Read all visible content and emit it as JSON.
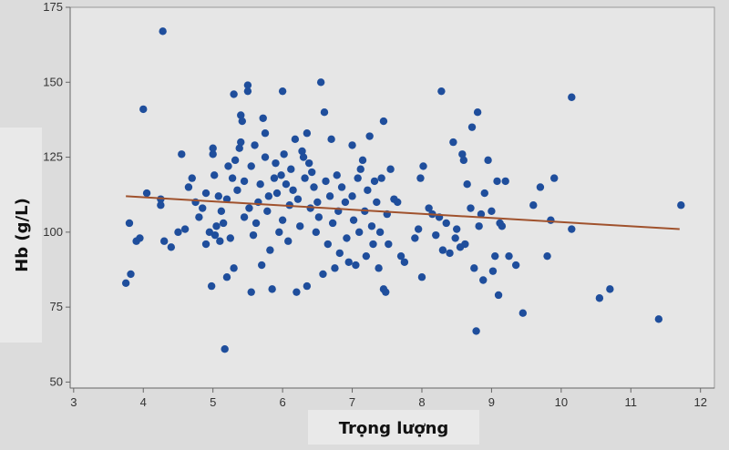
{
  "chart_data": {
    "type": "scatter",
    "xlabel": "Trọng lượng",
    "ylabel": "Hb (g/L)",
    "xlim": [
      2.95,
      12.2
    ],
    "ylim": [
      48,
      175
    ],
    "x_ticks": [
      3,
      4,
      5,
      6,
      7,
      8,
      9,
      10,
      11,
      12
    ],
    "y_ticks": [
      50,
      75,
      100,
      125,
      150,
      175
    ],
    "grid": false,
    "colors": {
      "points": "#1f4e9c",
      "trendline": "#a0522d",
      "plot_background": "#e6e6e6",
      "figure_background": "#dcdcdc"
    },
    "trendline": {
      "x": [
        3.75,
        11.7
      ],
      "y": [
        112,
        101
      ]
    },
    "points": [
      [
        3.75,
        83
      ],
      [
        3.8,
        103
      ],
      [
        3.82,
        86
      ],
      [
        3.9,
        97
      ],
      [
        3.95,
        98
      ],
      [
        4.0,
        141
      ],
      [
        4.05,
        113
      ],
      [
        4.25,
        111
      ],
      [
        4.25,
        109
      ],
      [
        4.28,
        167
      ],
      [
        4.3,
        97
      ],
      [
        4.4,
        95
      ],
      [
        4.5,
        100
      ],
      [
        4.55,
        126
      ],
      [
        4.6,
        101
      ],
      [
        4.65,
        115
      ],
      [
        4.7,
        118
      ],
      [
        4.75,
        110
      ],
      [
        4.8,
        105
      ],
      [
        4.85,
        108
      ],
      [
        4.9,
        113
      ],
      [
        4.9,
        96
      ],
      [
        4.95,
        100
      ],
      [
        4.98,
        82
      ],
      [
        5.0,
        126
      ],
      [
        5.0,
        128
      ],
      [
        5.02,
        119
      ],
      [
        5.03,
        99
      ],
      [
        5.05,
        102
      ],
      [
        5.08,
        112
      ],
      [
        5.1,
        97
      ],
      [
        5.12,
        107
      ],
      [
        5.15,
        103
      ],
      [
        5.17,
        61
      ],
      [
        5.2,
        85
      ],
      [
        5.2,
        111
      ],
      [
        5.22,
        122
      ],
      [
        5.25,
        98
      ],
      [
        5.28,
        118
      ],
      [
        5.3,
        146
      ],
      [
        5.3,
        88
      ],
      [
        5.32,
        124
      ],
      [
        5.35,
        114
      ],
      [
        5.38,
        128
      ],
      [
        5.4,
        130
      ],
      [
        5.4,
        139
      ],
      [
        5.42,
        137
      ],
      [
        5.45,
        117
      ],
      [
        5.45,
        105
      ],
      [
        5.5,
        149
      ],
      [
        5.5,
        147
      ],
      [
        5.52,
        108
      ],
      [
        5.55,
        80
      ],
      [
        5.55,
        122
      ],
      [
        5.58,
        99
      ],
      [
        5.6,
        129
      ],
      [
        5.62,
        103
      ],
      [
        5.65,
        110
      ],
      [
        5.68,
        116
      ],
      [
        5.7,
        89
      ],
      [
        5.72,
        138
      ],
      [
        5.75,
        133
      ],
      [
        5.75,
        125
      ],
      [
        5.78,
        107
      ],
      [
        5.8,
        112
      ],
      [
        5.82,
        94
      ],
      [
        5.85,
        81
      ],
      [
        5.88,
        118
      ],
      [
        5.9,
        123
      ],
      [
        5.92,
        113
      ],
      [
        5.95,
        100
      ],
      [
        5.98,
        119
      ],
      [
        6.0,
        147
      ],
      [
        6.0,
        104
      ],
      [
        6.02,
        126
      ],
      [
        6.05,
        116
      ],
      [
        6.08,
        97
      ],
      [
        6.1,
        109
      ],
      [
        6.12,
        121
      ],
      [
        6.15,
        114
      ],
      [
        6.18,
        131
      ],
      [
        6.2,
        80
      ],
      [
        6.22,
        111
      ],
      [
        6.25,
        102
      ],
      [
        6.28,
        127
      ],
      [
        6.3,
        125
      ],
      [
        6.32,
        118
      ],
      [
        6.35,
        133
      ],
      [
        6.35,
        82
      ],
      [
        6.38,
        123
      ],
      [
        6.4,
        108
      ],
      [
        6.42,
        120
      ],
      [
        6.45,
        115
      ],
      [
        6.48,
        100
      ],
      [
        6.5,
        110
      ],
      [
        6.52,
        105
      ],
      [
        6.55,
        150
      ],
      [
        6.58,
        86
      ],
      [
        6.6,
        140
      ],
      [
        6.62,
        117
      ],
      [
        6.65,
        96
      ],
      [
        6.68,
        112
      ],
      [
        6.7,
        131
      ],
      [
        6.72,
        103
      ],
      [
        6.75,
        88
      ],
      [
        6.78,
        119
      ],
      [
        6.8,
        107
      ],
      [
        6.82,
        93
      ],
      [
        6.85,
        115
      ],
      [
        6.9,
        110
      ],
      [
        6.92,
        98
      ],
      [
        6.95,
        90
      ],
      [
        7.0,
        129
      ],
      [
        7.0,
        112
      ],
      [
        7.02,
        104
      ],
      [
        7.05,
        89
      ],
      [
        7.08,
        118
      ],
      [
        7.1,
        100
      ],
      [
        7.12,
        121
      ],
      [
        7.15,
        124
      ],
      [
        7.18,
        107
      ],
      [
        7.2,
        92
      ],
      [
        7.22,
        114
      ],
      [
        7.25,
        132
      ],
      [
        7.28,
        102
      ],
      [
        7.3,
        96
      ],
      [
        7.32,
        117
      ],
      [
        7.35,
        110
      ],
      [
        7.38,
        88
      ],
      [
        7.4,
        100
      ],
      [
        7.42,
        118
      ],
      [
        7.45,
        137
      ],
      [
        7.45,
        81
      ],
      [
        7.48,
        80
      ],
      [
        7.5,
        106
      ],
      [
        7.52,
        96
      ],
      [
        7.55,
        121
      ],
      [
        7.6,
        111
      ],
      [
        7.65,
        110
      ],
      [
        7.7,
        92
      ],
      [
        7.75,
        90
      ],
      [
        7.9,
        98
      ],
      [
        7.95,
        101
      ],
      [
        7.98,
        118
      ],
      [
        8.0,
        85
      ],
      [
        8.02,
        122
      ],
      [
        8.1,
        108
      ],
      [
        8.15,
        106
      ],
      [
        8.2,
        99
      ],
      [
        8.25,
        105
      ],
      [
        8.28,
        147
      ],
      [
        8.3,
        94
      ],
      [
        8.35,
        103
      ],
      [
        8.4,
        93
      ],
      [
        8.45,
        130
      ],
      [
        8.48,
        98
      ],
      [
        8.5,
        101
      ],
      [
        8.55,
        95
      ],
      [
        8.58,
        126
      ],
      [
        8.6,
        124
      ],
      [
        8.62,
        96
      ],
      [
        8.65,
        116
      ],
      [
        8.7,
        108
      ],
      [
        8.72,
        135
      ],
      [
        8.75,
        88
      ],
      [
        8.78,
        67
      ],
      [
        8.8,
        140
      ],
      [
        8.82,
        102
      ],
      [
        8.85,
        106
      ],
      [
        8.88,
        84
      ],
      [
        8.9,
        113
      ],
      [
        8.95,
        124
      ],
      [
        9.0,
        107
      ],
      [
        9.02,
        87
      ],
      [
        9.05,
        92
      ],
      [
        9.08,
        117
      ],
      [
        9.1,
        79
      ],
      [
        9.12,
        103
      ],
      [
        9.15,
        102
      ],
      [
        9.2,
        117
      ],
      [
        9.25,
        92
      ],
      [
        9.35,
        89
      ],
      [
        9.45,
        73
      ],
      [
        9.6,
        109
      ],
      [
        9.7,
        115
      ],
      [
        9.8,
        92
      ],
      [
        9.85,
        104
      ],
      [
        9.9,
        118
      ],
      [
        10.15,
        145
      ],
      [
        10.15,
        101
      ],
      [
        10.55,
        78
      ],
      [
        10.7,
        81
      ],
      [
        11.4,
        71
      ],
      [
        11.72,
        109
      ]
    ]
  }
}
